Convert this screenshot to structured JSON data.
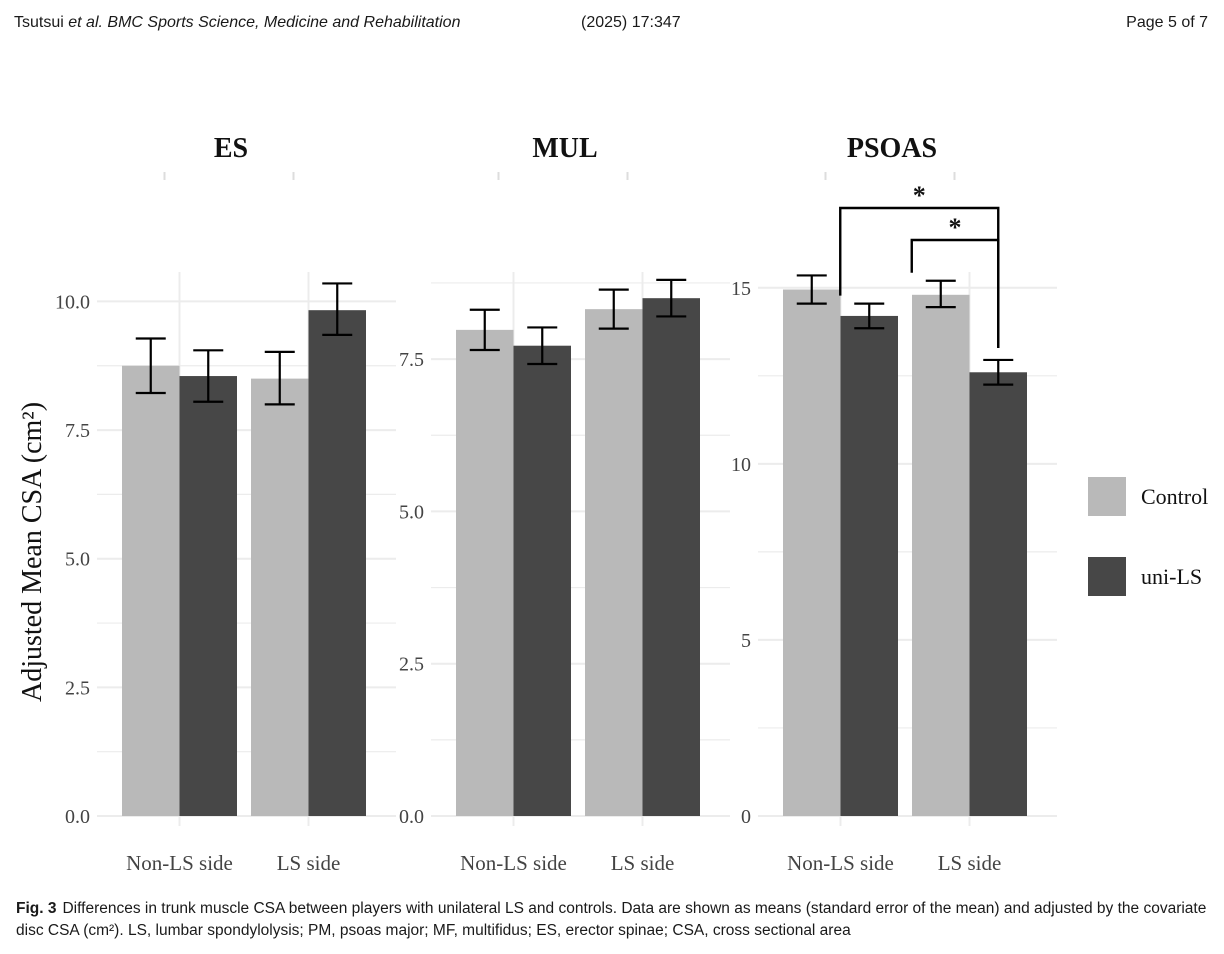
{
  "header": {
    "authors": "Tsutsui",
    "etal": "et al.",
    "journal": "BMC Sports Science, Medicine and Rehabilitation",
    "citation": "(2025) 17:347",
    "page": "Page 5 of 7"
  },
  "caption": {
    "label": "Fig. 3",
    "text": "Differences in trunk muscle CSA between players with unilateral LS and controls. Data are shown as means (standard error of the mean) and adjusted by the covariate disc CSA (cm²). LS, lumbar spondylolysis; PM, psoas major; MF, multifidus; ES, erector spinae; CSA, cross sectional area"
  },
  "chart_data": {
    "type": "bar",
    "ylabel": "Adjusted Mean CSA (cm²)",
    "categories": [
      "Non-LS side",
      "LS side"
    ],
    "legend": {
      "placement": "right",
      "entries": [
        {
          "name": "Control",
          "color": "#b9b9b9"
        },
        {
          "name": "uni-LS",
          "color": "#474747"
        }
      ]
    },
    "grid": true,
    "panels": [
      {
        "title": "ES",
        "ylim": [
          0,
          10.3
        ],
        "yticks": [
          "0.0",
          "2.5",
          "5.0",
          "7.5",
          "10.0"
        ],
        "ytick_values": [
          0,
          2.5,
          5,
          7.5,
          10
        ],
        "series": [
          {
            "name": "Control",
            "values": [
              8.75,
              8.5
            ],
            "err_low": [
              8.22,
              8.0
            ],
            "err_high": [
              9.28,
              9.02
            ]
          },
          {
            "name": "uni-LS",
            "values": [
              8.55,
              9.83
            ],
            "err_low": [
              8.05,
              9.35
            ],
            "err_high": [
              9.05,
              10.35
            ]
          }
        ],
        "significance": []
      },
      {
        "title": "MUL",
        "ylim": [
          0,
          8.7
        ],
        "yticks": [
          "0.0",
          "2.5",
          "5.0",
          "7.5"
        ],
        "ytick_values": [
          0,
          2.5,
          5,
          7.5
        ],
        "series": [
          {
            "name": "Control",
            "values": [
              7.98,
              8.32
            ],
            "err_low": [
              7.65,
              8.0
            ],
            "err_high": [
              8.31,
              8.64
            ]
          },
          {
            "name": "uni-LS",
            "values": [
              7.72,
              8.5
            ],
            "err_low": [
              7.42,
              8.2
            ],
            "err_high": [
              8.02,
              8.8
            ]
          }
        ],
        "significance": []
      },
      {
        "title": "PSOAS",
        "ylim": [
          0,
          15.05
        ],
        "yticks": [
          "0",
          "5",
          "10",
          "15"
        ],
        "ytick_values": [
          0,
          5,
          10,
          15
        ],
        "series": [
          {
            "name": "Control",
            "values": [
              14.95,
              14.8
            ],
            "err_low": [
              14.55,
              14.45
            ],
            "err_high": [
              15.35,
              15.2
            ]
          },
          {
            "name": "uni-LS",
            "values": [
              14.2,
              12.6
            ],
            "err_low": [
              13.85,
              12.25
            ],
            "err_high": [
              14.55,
              12.95
            ]
          }
        ],
        "significance": [
          {
            "from": "Non-LS side / uni-LS",
            "to": "LS side / uni-LS",
            "label": "*"
          },
          {
            "from": "LS side / Control",
            "to": "LS side / uni-LS",
            "label": "*"
          }
        ]
      }
    ]
  }
}
